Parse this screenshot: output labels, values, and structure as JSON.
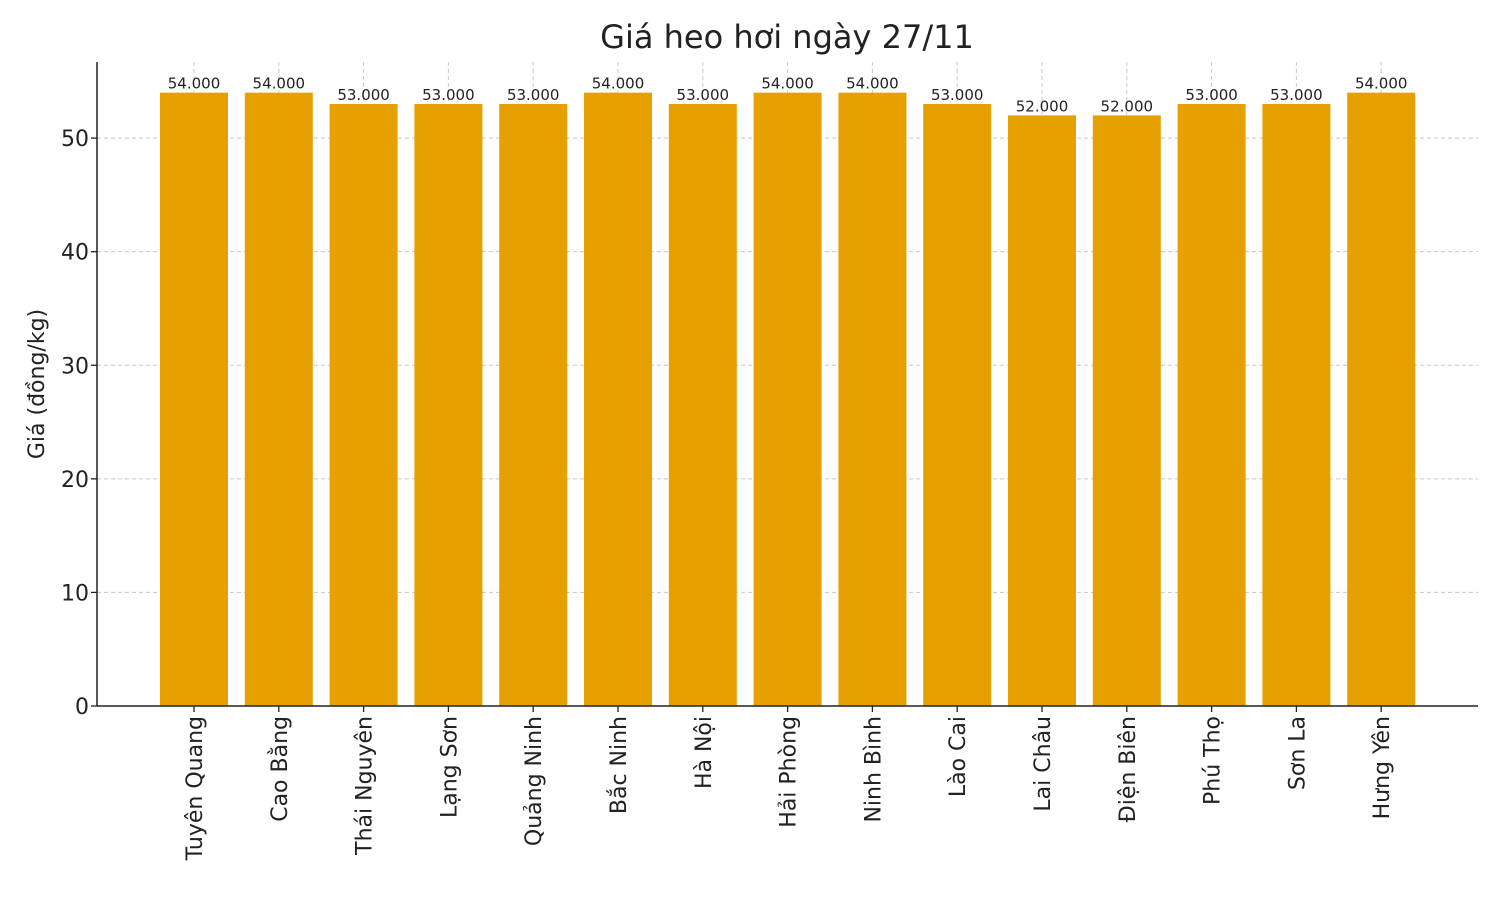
{
  "chart_data": {
    "type": "bar",
    "title": "Giá heo hơi ngày 27/11",
    "xlabel": "",
    "ylabel": "Giá (đồng/kg)",
    "categories": [
      "Tuyên Quang",
      "Cao Bằng",
      "Thái Nguyên",
      "Lạng Sơn",
      "Quảng Ninh",
      "Bắc Ninh",
      "Hà Nội",
      "Hải Phòng",
      "Ninh Bình",
      "Lào Cai",
      "Lai Châu",
      "Điện Biên",
      "Phú Thọ",
      "Sơn La",
      "Hưng Yên"
    ],
    "values": [
      54,
      54,
      53,
      53,
      53,
      54,
      53,
      54,
      54,
      53,
      52,
      52,
      53,
      53,
      54
    ],
    "data_labels": [
      "54.000",
      "54.000",
      "53.000",
      "53.000",
      "53.000",
      "54.000",
      "53.000",
      "54.000",
      "54.000",
      "53.000",
      "52.000",
      "52.000",
      "53.000",
      "53.000",
      "54.000"
    ],
    "yticks": [
      "0",
      "10",
      "20",
      "30",
      "40",
      "50"
    ],
    "ylim": [
      0,
      56.7
    ],
    "grid": true,
    "bar_color": "#E6A000"
  }
}
